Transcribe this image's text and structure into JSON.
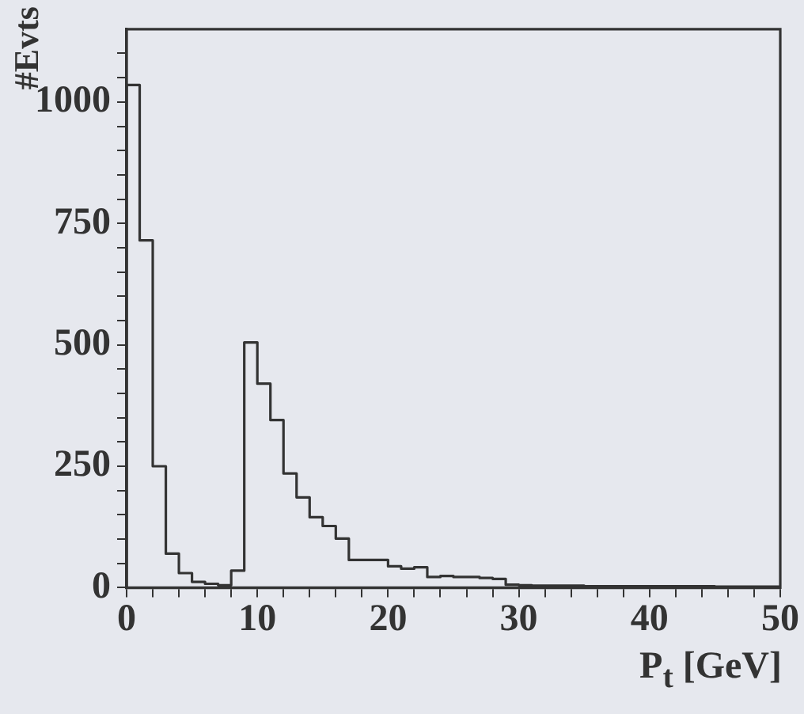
{
  "chart_data": {
    "type": "histogram",
    "xlabel": "P$_{t}$ [GeV]",
    "ylabel": "#Evts",
    "bins": [
      0,
      1,
      2,
      3,
      4,
      5,
      6,
      7,
      8,
      9,
      10,
      11,
      12,
      13,
      14,
      15,
      16,
      17,
      18,
      19,
      20,
      21,
      22,
      23,
      24,
      25,
      26,
      27,
      28,
      29,
      30,
      31,
      32,
      33,
      34,
      35,
      36,
      37,
      38,
      39,
      40,
      41,
      42,
      43,
      44,
      45,
      46,
      47,
      48,
      49,
      50
    ],
    "values": [
      1035,
      715,
      250,
      70,
      30,
      12,
      8,
      5,
      35,
      505,
      420,
      345,
      235,
      186,
      145,
      127,
      101,
      57,
      57,
      57,
      44,
      39,
      42,
      22,
      24,
      22,
      22,
      20,
      18,
      6,
      5,
      4,
      4,
      4,
      4,
      3,
      3,
      3,
      3,
      3,
      3,
      3,
      3,
      3,
      3,
      2,
      2,
      2,
      2,
      2
    ],
    "color": "#333333",
    "xlim": [
      0,
      50
    ],
    "xticks": [
      0,
      {
        "value": 2,
        "label": null
      },
      {
        "value": 4,
        "label": null
      },
      {
        "value": 6,
        "label": null
      },
      {
        "value": 8,
        "label": null
      },
      10,
      {
        "value": 12,
        "label": null
      },
      {
        "value": 14,
        "label": null
      },
      {
        "value": 16,
        "label": null
      },
      {
        "value": 18,
        "label": null
      },
      20,
      {
        "value": 22,
        "label": null
      },
      {
        "value": 24,
        "label": null
      },
      {
        "value": 26,
        "label": null
      },
      {
        "value": 28,
        "label": null
      },
      30,
      {
        "value": 32,
        "label": null
      },
      {
        "value": 34,
        "label": null
      },
      {
        "value": 36,
        "label": null
      },
      {
        "value": 38,
        "label": null
      },
      40,
      {
        "value": 42,
        "label": null
      },
      {
        "value": 44,
        "label": null
      },
      {
        "value": 46,
        "label": null
      },
      {
        "value": 48,
        "label": null
      },
      50
    ],
    "ylim": [
      0,
      1150
    ],
    "yticks": [
      0,
      {
        "value": 50,
        "label": null
      },
      {
        "value": 100,
        "label": null
      },
      {
        "value": 150,
        "label": null
      },
      {
        "value": 200,
        "label": null
      },
      250,
      {
        "value": 300,
        "label": null
      },
      {
        "value": 350,
        "label": null
      },
      {
        "value": 400,
        "label": null
      },
      {
        "value": 450,
        "label": null
      },
      500,
      {
        "value": 550,
        "label": null
      },
      {
        "value": 600,
        "label": null
      },
      {
        "value": 650,
        "label": null
      },
      {
        "value": 700,
        "label": null
      },
      750,
      {
        "value": 800,
        "label": null
      },
      {
        "value": 850,
        "label": null
      },
      {
        "value": 900,
        "label": null
      },
      {
        "value": 950,
        "label": null
      },
      1000,
      {
        "value": 1050,
        "label": null
      },
      {
        "value": 1100,
        "label": null
      }
    ],
    "grid": false,
    "legend": false
  }
}
